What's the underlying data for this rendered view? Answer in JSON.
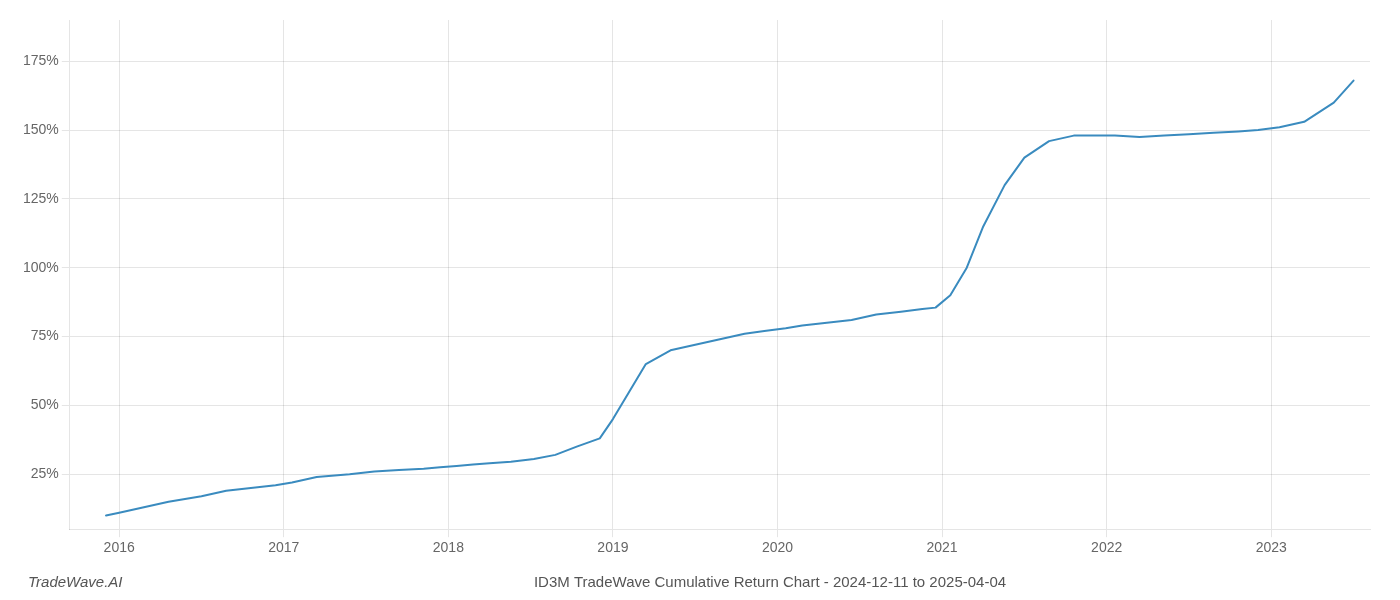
{
  "chart_data": {
    "type": "line",
    "title": "ID3M TradeWave Cumulative Return Chart - 2024-12-11 to 2025-04-04",
    "annotations": [
      "TradeWave.AI"
    ],
    "x": [
      2015.92,
      2016.0,
      2016.15,
      2016.3,
      2016.5,
      2016.65,
      2016.8,
      2016.95,
      2017.05,
      2017.2,
      2017.4,
      2017.55,
      2017.7,
      2017.85,
      2017.95,
      2018.05,
      2018.15,
      2018.25,
      2018.38,
      2018.52,
      2018.65,
      2018.78,
      2018.92,
      2019.0,
      2019.1,
      2019.2,
      2019.35,
      2019.5,
      2019.65,
      2019.8,
      2019.92,
      2020.05,
      2020.15,
      2020.3,
      2020.45,
      2020.6,
      2020.75,
      2020.88,
      2020.96,
      2021.05,
      2021.15,
      2021.25,
      2021.38,
      2021.5,
      2021.65,
      2021.8,
      2021.95,
      2022.05,
      2022.2,
      2022.35,
      2022.5,
      2022.65,
      2022.8,
      2022.92,
      2023.05,
      2023.2,
      2023.38,
      2023.5
    ],
    "values": [
      10,
      11,
      13,
      15,
      17,
      19,
      20,
      21,
      22,
      24,
      25,
      26,
      26.5,
      27,
      27.5,
      28,
      28.5,
      29,
      29.5,
      30.5,
      32,
      35,
      38,
      45,
      55,
      65,
      70,
      72,
      74,
      76,
      77,
      78,
      79,
      80,
      81,
      83,
      84,
      85,
      85.5,
      90,
      100,
      115,
      130,
      140,
      146,
      148,
      148,
      148,
      147.5,
      148,
      148.5,
      149,
      149.5,
      150,
      151,
      153,
      160,
      168
    ],
    "color": "#3a8bbf",
    "xlim": [
      2015.7,
      2023.6
    ],
    "xticks": [
      2016,
      2017,
      2018,
      2019,
      2020,
      2021,
      2022,
      2023
    ],
    "ylim": [
      5,
      190
    ],
    "yticks": [
      {
        "value": 25,
        "label": "25%"
      },
      {
        "value": 50,
        "label": "50%"
      },
      {
        "value": 75,
        "label": "75%"
      },
      {
        "value": 100,
        "label": "100%"
      },
      {
        "value": 125,
        "label": "125%"
      },
      {
        "value": 150,
        "label": "150%"
      },
      {
        "value": 175,
        "label": "175%"
      }
    ],
    "grid": true
  }
}
